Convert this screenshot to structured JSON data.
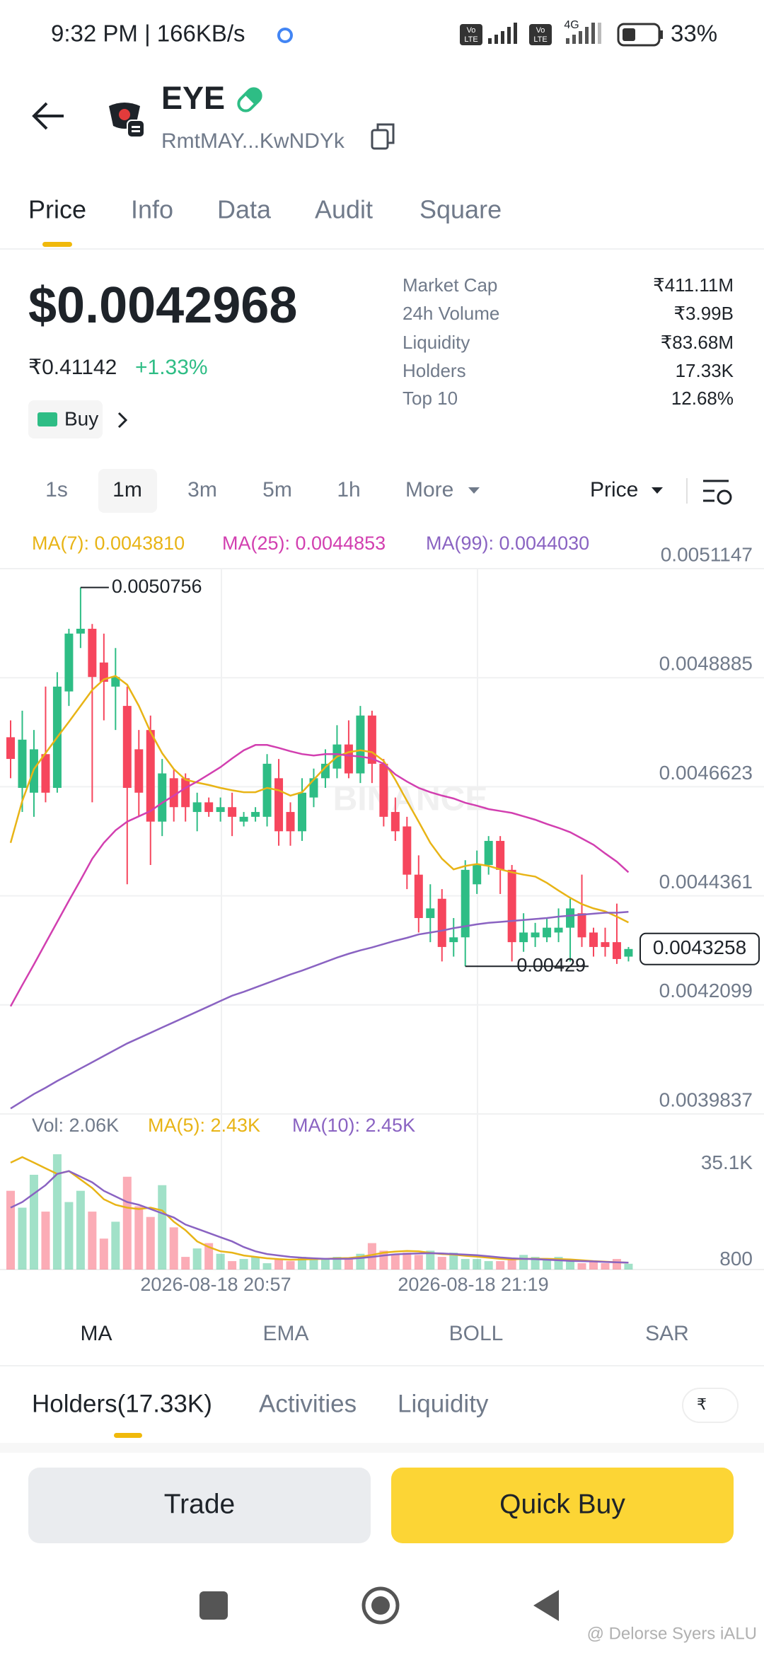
{
  "status_bar": {
    "time": "9:32 PM | 166KB/s",
    "volte": [
      "Vo",
      "LTE"
    ],
    "network": "4G",
    "battery": "33%"
  },
  "header": {
    "token": "EYE",
    "address": "RmtMAY...KwNDYk"
  },
  "tabs": [
    "Price",
    "Info",
    "Data",
    "Audit",
    "Square"
  ],
  "price": {
    "usd": "$0.0042968",
    "inr": "₹0.41142",
    "change": "+1.33%",
    "buy": "Buy"
  },
  "stats": [
    {
      "label": "Market Cap",
      "value": "₹411.11M"
    },
    {
      "label": "24h Volume",
      "value": "₹3.99B"
    },
    {
      "label": "Liquidity",
      "value": "₹83.68M"
    },
    {
      "label": "Holders",
      "value": "17.33K"
    },
    {
      "label": "Top 10",
      "value": "12.68%"
    }
  ],
  "intervals": [
    "1s",
    "1m",
    "3m",
    "5m",
    "1h",
    "More"
  ],
  "price_selector": "Price",
  "chart_data": {
    "type": "candlestick",
    "watermark": "BINANCE",
    "ylim": [
      0.0039837,
      0.0051147
    ],
    "yticks": [
      0.0051147,
      0.0048885,
      0.0046623,
      0.0044361,
      0.0042099,
      0.0039837
    ],
    "grid": true,
    "up_color": "#2ebd85",
    "down_color": "#f6465d",
    "candles": [
      {
        "o": 0.004765,
        "h": 0.0048,
        "l": 0.00468,
        "c": 0.00472
      },
      {
        "o": 0.00466,
        "h": 0.00482,
        "l": 0.00461,
        "c": 0.00476
      },
      {
        "o": 0.00465,
        "h": 0.00478,
        "l": 0.0046,
        "c": 0.00474
      },
      {
        "o": 0.00473,
        "h": 0.00487,
        "l": 0.00463,
        "c": 0.00465
      },
      {
        "o": 0.00466,
        "h": 0.0049,
        "l": 0.00465,
        "c": 0.00487
      },
      {
        "o": 0.00486,
        "h": 0.00499,
        "l": 0.00483,
        "c": 0.00498
      },
      {
        "o": 0.00498,
        "h": 0.0050756,
        "l": 0.00495,
        "c": 0.00499
      },
      {
        "o": 0.00499,
        "h": 0.005,
        "l": 0.00463,
        "c": 0.00489
      },
      {
        "o": 0.00492,
        "h": 0.00498,
        "l": 0.0048,
        "c": 0.00488
      },
      {
        "o": 0.00487,
        "h": 0.00495,
        "l": 0.00478,
        "c": 0.00489
      },
      {
        "o": 0.00483,
        "h": 0.00487,
        "l": 0.00446,
        "c": 0.00466
      },
      {
        "o": 0.00474,
        "h": 0.00478,
        "l": 0.0046,
        "c": 0.00465
      },
      {
        "o": 0.00478,
        "h": 0.00481,
        "l": 0.0045,
        "c": 0.00459
      },
      {
        "o": 0.00459,
        "h": 0.00472,
        "l": 0.00456,
        "c": 0.00469
      },
      {
        "o": 0.00468,
        "h": 0.0047,
        "l": 0.00459,
        "c": 0.00462
      },
      {
        "o": 0.00468,
        "h": 0.00469,
        "l": 0.00459,
        "c": 0.00462
      },
      {
        "o": 0.00461,
        "h": 0.00465,
        "l": 0.00457,
        "c": 0.00463
      },
      {
        "o": 0.00463,
        "h": 0.00464,
        "l": 0.0046,
        "c": 0.00461
      },
      {
        "o": 0.00461,
        "h": 0.00464,
        "l": 0.00459,
        "c": 0.00462
      },
      {
        "o": 0.00462,
        "h": 0.00465,
        "l": 0.00456,
        "c": 0.0046
      },
      {
        "o": 0.00459,
        "h": 0.00461,
        "l": 0.00458,
        "c": 0.0046
      },
      {
        "o": 0.0046,
        "h": 0.00462,
        "l": 0.00459,
        "c": 0.00461
      },
      {
        "o": 0.0046,
        "h": 0.00473,
        "l": 0.00458,
        "c": 0.00471
      },
      {
        "o": 0.00468,
        "h": 0.00472,
        "l": 0.00454,
        "c": 0.00457
      },
      {
        "o": 0.00461,
        "h": 0.00463,
        "l": 0.00454,
        "c": 0.00457
      },
      {
        "o": 0.00457,
        "h": 0.00468,
        "l": 0.00455,
        "c": 0.00465
      },
      {
        "o": 0.00464,
        "h": 0.0047,
        "l": 0.00462,
        "c": 0.00468
      },
      {
        "o": 0.00468,
        "h": 0.00474,
        "l": 0.00466,
        "c": 0.00471
      },
      {
        "o": 0.0047,
        "h": 0.00479,
        "l": 0.00468,
        "c": 0.00475
      },
      {
        "o": 0.00475,
        "h": 0.0048,
        "l": 0.00468,
        "c": 0.00469
      },
      {
        "o": 0.00469,
        "h": 0.00483,
        "l": 0.00467,
        "c": 0.00481
      },
      {
        "o": 0.00481,
        "h": 0.00482,
        "l": 0.00467,
        "c": 0.00471
      },
      {
        "o": 0.00471,
        "h": 0.00472,
        "l": 0.00458,
        "c": 0.0046
      },
      {
        "o": 0.00461,
        "h": 0.00464,
        "l": 0.00455,
        "c": 0.00457
      },
      {
        "o": 0.00458,
        "h": 0.0046,
        "l": 0.00445,
        "c": 0.00448
      },
      {
        "o": 0.00448,
        "h": 0.00452,
        "l": 0.00436,
        "c": 0.00439
      },
      {
        "o": 0.00439,
        "h": 0.00446,
        "l": 0.00434,
        "c": 0.00441
      },
      {
        "o": 0.00443,
        "h": 0.00445,
        "l": 0.0043,
        "c": 0.00433
      },
      {
        "o": 0.00434,
        "h": 0.00439,
        "l": 0.00431,
        "c": 0.00435
      },
      {
        "o": 0.00435,
        "h": 0.00451,
        "l": 0.00429,
        "c": 0.00449
      },
      {
        "o": 0.00446,
        "h": 0.00453,
        "l": 0.00444,
        "c": 0.0045
      },
      {
        "o": 0.0045,
        "h": 0.00456,
        "l": 0.00448,
        "c": 0.00455
      },
      {
        "o": 0.00455,
        "h": 0.00456,
        "l": 0.00444,
        "c": 0.00449
      },
      {
        "o": 0.00449,
        "h": 0.0045,
        "l": 0.0043,
        "c": 0.00434
      },
      {
        "o": 0.00434,
        "h": 0.0044,
        "l": 0.00432,
        "c": 0.00436
      },
      {
        "o": 0.00435,
        "h": 0.00438,
        "l": 0.00433,
        "c": 0.00436
      },
      {
        "o": 0.00435,
        "h": 0.00439,
        "l": 0.00434,
        "c": 0.00437
      },
      {
        "o": 0.00436,
        "h": 0.00441,
        "l": 0.00434,
        "c": 0.00437
      },
      {
        "o": 0.00437,
        "h": 0.00443,
        "l": 0.0043,
        "c": 0.00441
      },
      {
        "o": 0.0044,
        "h": 0.00448,
        "l": 0.00433,
        "c": 0.00435
      },
      {
        "o": 0.00436,
        "h": 0.00437,
        "l": 0.00431,
        "c": 0.00433
      },
      {
        "o": 0.00434,
        "h": 0.00437,
        "l": 0.00431,
        "c": 0.00433
      },
      {
        "o": 0.00434,
        "h": 0.00442,
        "l": 0.0042949,
        "c": 0.004305
      },
      {
        "o": 0.00431,
        "h": 0.00433,
        "l": 0.0043,
        "c": 0.0043258
      }
    ],
    "ma_lines": [
      {
        "legend": "MA(7): 0.0043810",
        "color": "#e8b416",
        "values": [
          0.004546,
          0.004633,
          0.004699,
          0.004732,
          0.004765,
          0.004797,
          0.00483,
          0.004863,
          0.004885,
          0.004892,
          0.004874,
          0.00483,
          0.004776,
          0.004732,
          0.004699,
          0.004677,
          0.004671,
          0.004666,
          0.00466,
          0.004655,
          0.004651,
          0.004651,
          0.00466,
          0.004655,
          0.004644,
          0.004651,
          0.004677,
          0.004703,
          0.004725,
          0.004734,
          0.004738,
          0.004734,
          0.004716,
          0.004677,
          0.004633,
          0.00459,
          0.004546,
          0.004513,
          0.004491,
          0.004498,
          0.004502,
          0.004498,
          0.004491,
          0.004485,
          0.00448,
          0.004476,
          0.004463,
          0.004447,
          0.004432,
          0.004419,
          0.00441,
          0.004404,
          0.004393,
          0.004381
        ]
      },
      {
        "legend": "MA(25): 0.0044853",
        "color": "#d23fb0",
        "values": [
          0.004207,
          0.004251,
          0.004294,
          0.004338,
          0.004382,
          0.004426,
          0.004469,
          0.004513,
          0.004546,
          0.004572,
          0.00459,
          0.004601,
          0.004612,
          0.004629,
          0.004644,
          0.00466,
          0.004673,
          0.004688,
          0.004703,
          0.004721,
          0.004738,
          0.004749,
          0.004749,
          0.004743,
          0.004736,
          0.00473,
          0.004727,
          0.00473,
          0.00473,
          0.004727,
          0.004725,
          0.004721,
          0.00471,
          0.004688,
          0.004673,
          0.00466,
          0.004651,
          0.004644,
          0.004638,
          0.004629,
          0.004623,
          0.004616,
          0.004612,
          0.004608,
          0.004601,
          0.004594,
          0.004585,
          0.004577,
          0.004568,
          0.004555,
          0.004542,
          0.004524,
          0.004507,
          0.004485
        ]
      },
      {
        "legend": "MA(99): 0.0044030",
        "color": "#8a63c2",
        "values": [
          0.003995,
          0.00401,
          0.004025,
          0.004038,
          0.004052,
          0.004065,
          0.004078,
          0.004091,
          0.004104,
          0.004117,
          0.00413,
          0.004141,
          0.004152,
          0.004163,
          0.004174,
          0.004185,
          0.004196,
          0.004207,
          0.004218,
          0.004229,
          0.004237,
          0.004246,
          0.004255,
          0.004264,
          0.004273,
          0.004281,
          0.00429,
          0.004299,
          0.004308,
          0.004316,
          0.004323,
          0.004329,
          0.004336,
          0.004343,
          0.004349,
          0.004356,
          0.00436,
          0.004364,
          0.004369,
          0.004373,
          0.004377,
          0.00438,
          0.004382,
          0.004384,
          0.004386,
          0.004388,
          0.00439,
          0.004393,
          0.004395,
          0.004397,
          0.004399,
          0.004401,
          0.004401,
          0.004403
        ]
      }
    ],
    "volume": {
      "legend": "Vol: 2.06K",
      "ylim": [
        0,
        42000
      ],
      "yticks": [
        {
          "value": 35100,
          "label": "35.1K"
        },
        800
      ],
      "values": [
        28000,
        22000,
        33700,
        20600,
        41000,
        24000,
        28000,
        20600,
        11000,
        17000,
        33000,
        22500,
        18700,
        30000,
        15000,
        4500,
        7500,
        9400,
        5600,
        3000,
        3750,
        4500,
        2250,
        3750,
        3000,
        4500,
        3750,
        3750,
        4500,
        3750,
        5600,
        9400,
        6700,
        5200,
        6000,
        5200,
        6700,
        4500,
        6000,
        3750,
        3750,
        3000,
        3000,
        3750,
        5200,
        4500,
        3750,
        4500,
        3000,
        2250,
        3000,
        2250,
        3750,
        2060
      ],
      "series": [
        {
          "legend": "MA(5): 2.43K",
          "color": "#e8b416",
          "values": [
            38000,
            40000,
            38000,
            36000,
            34000,
            35000,
            32000,
            29000,
            25000,
            23000,
            22000,
            21500,
            22000,
            21000,
            17000,
            14000,
            10000,
            8000,
            6500,
            6000,
            5000,
            4500,
            4000,
            3700,
            3500,
            3600,
            3700,
            3800,
            4000,
            4100,
            4500,
            5200,
            6000,
            6400,
            6600,
            6500,
            5900,
            5500,
            5300,
            4900,
            4600,
            4200,
            3800,
            3600,
            3800,
            3800,
            3800,
            3700,
            3600,
            3300,
            3000,
            2800,
            2600,
            2430
          ]
        },
        {
          "legend": "MA(10): 2.45K",
          "color": "#8a63c2",
          "values": [
            22000,
            24000,
            27000,
            30000,
            34000,
            35000,
            33000,
            31000,
            28000,
            26000,
            24000,
            23000,
            21500,
            20000,
            18500,
            16000,
            14500,
            13000,
            11500,
            10000,
            8000,
            6500,
            5500,
            5000,
            4500,
            4200,
            4000,
            3800,
            3800,
            3800,
            4100,
            4500,
            5000,
            5400,
            5600,
            5700,
            5800,
            5700,
            5500,
            5300,
            5100,
            4700,
            4300,
            4000,
            3800,
            3700,
            3500,
            3300,
            3100,
            3000,
            2900,
            2700,
            2600,
            2450
          ]
        }
      ]
    },
    "time_labels": [
      "2026-08-18 20:57",
      "2026-08-18 21:19"
    ]
  },
  "indicators": [
    "MA",
    "EMA",
    "BOLL",
    "SAR"
  ],
  "bottom_tabs": {
    "items": [
      "Holders(17.33K)",
      "Activities",
      "Liquidity"
    ],
    "currency": "₹"
  },
  "actions": {
    "trade": "Trade",
    "quick_buy": "Quick Buy"
  },
  "watermark": "@ Delorse Syers iALU"
}
